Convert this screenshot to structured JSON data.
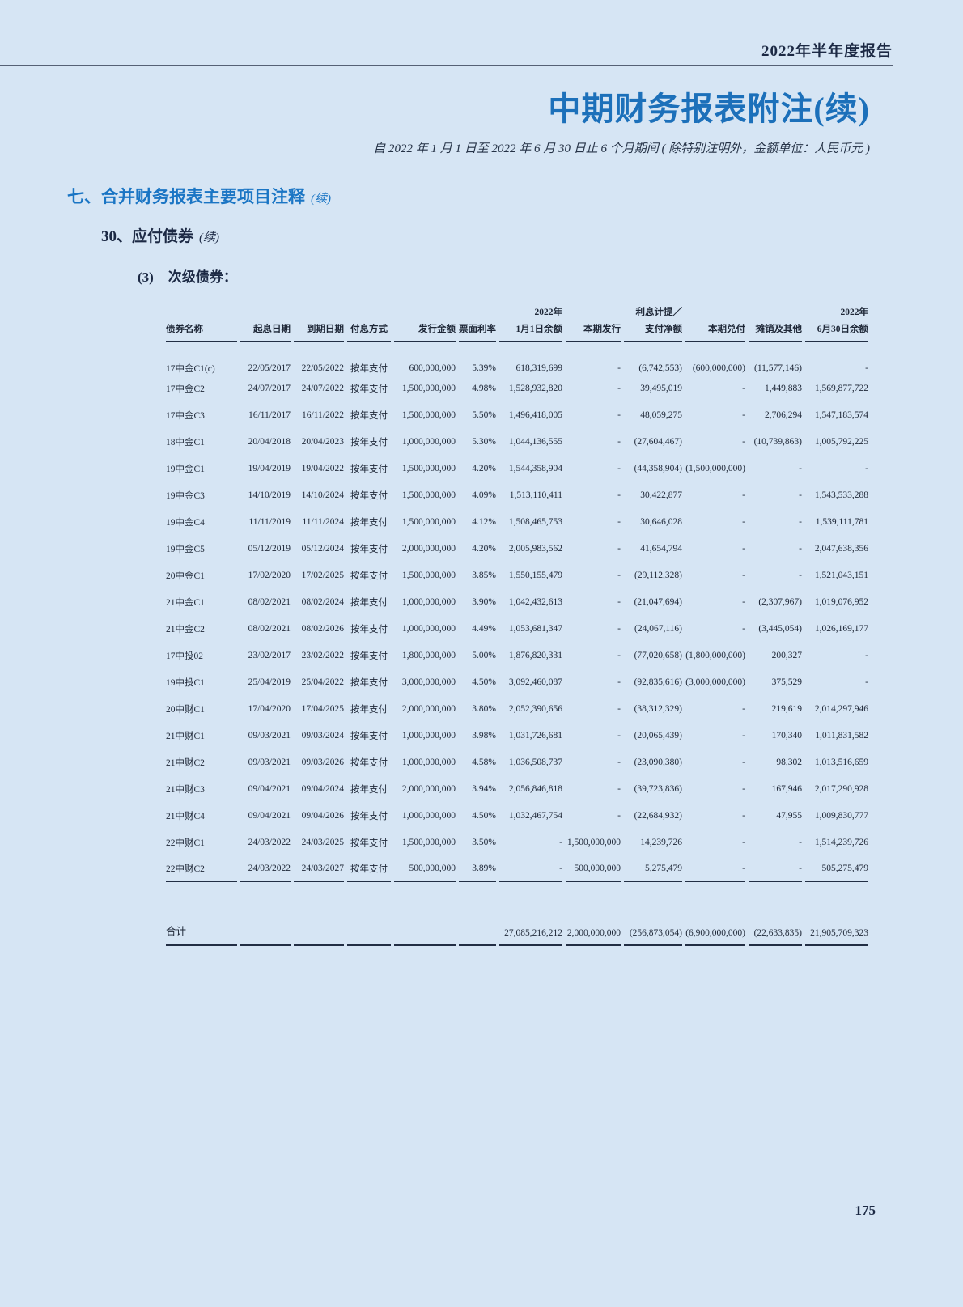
{
  "page": {
    "report_header": "2022年半年度报告",
    "title": "中期财务报表附注(续)",
    "subtitle": "自 2022 年 1 月 1 日至 2022 年 6 月 30 日止 6 个月期间 ( 除特别注明外，金额单位：人民币元 )",
    "page_number": "175"
  },
  "sections": {
    "level1": {
      "label": "七、合并财务报表主要项目注释",
      "suffix": "(续)"
    },
    "level2": {
      "label": "30、应付债券",
      "suffix": "(续)"
    },
    "level3": {
      "num": "(3)",
      "label": "次级债券："
    }
  },
  "table": {
    "superheaders": [
      "",
      "",
      "",
      "",
      "",
      "",
      "2022年",
      "",
      "利息计提／",
      "",
      "",
      "2022年"
    ],
    "headers": [
      "债券名称",
      "起息日期",
      "到期日期",
      "付息方式",
      "发行金额",
      "票面利率",
      "1月1日余额",
      "本期发行",
      "支付净额",
      "本期兑付",
      "摊销及其他",
      "6月30日余额"
    ],
    "rows": [
      [
        "17中金C1(c)",
        "22/05/2017",
        "22/05/2022",
        "按年支付",
        "600,000,000",
        "5.39%",
        "618,319,699",
        "-",
        "(6,742,553)",
        "(600,000,000)",
        "(11,577,146)",
        "-"
      ],
      [
        "17中金C2",
        "24/07/2017",
        "24/07/2022",
        "按年支付",
        "1,500,000,000",
        "4.98%",
        "1,528,932,820",
        "-",
        "39,495,019",
        "-",
        "1,449,883",
        "1,569,877,722"
      ],
      [
        "17中金C3",
        "16/11/2017",
        "16/11/2022",
        "按年支付",
        "1,500,000,000",
        "5.50%",
        "1,496,418,005",
        "-",
        "48,059,275",
        "-",
        "2,706,294",
        "1,547,183,574"
      ],
      [
        "18中金C1",
        "20/04/2018",
        "20/04/2023",
        "按年支付",
        "1,000,000,000",
        "5.30%",
        "1,044,136,555",
        "-",
        "(27,604,467)",
        "-",
        "(10,739,863)",
        "1,005,792,225"
      ],
      [
        "19中金C1",
        "19/04/2019",
        "19/04/2022",
        "按年支付",
        "1,500,000,000",
        "4.20%",
        "1,544,358,904",
        "-",
        "(44,358,904)",
        "(1,500,000,000)",
        "-",
        "-"
      ],
      [
        "19中金C3",
        "14/10/2019",
        "14/10/2024",
        "按年支付",
        "1,500,000,000",
        "4.09%",
        "1,513,110,411",
        "-",
        "30,422,877",
        "-",
        "-",
        "1,543,533,288"
      ],
      [
        "19中金C4",
        "11/11/2019",
        "11/11/2024",
        "按年支付",
        "1,500,000,000",
        "4.12%",
        "1,508,465,753",
        "-",
        "30,646,028",
        "-",
        "-",
        "1,539,111,781"
      ],
      [
        "19中金C5",
        "05/12/2019",
        "05/12/2024",
        "按年支付",
        "2,000,000,000",
        "4.20%",
        "2,005,983,562",
        "-",
        "41,654,794",
        "-",
        "-",
        "2,047,638,356"
      ],
      [
        "20中金C1",
        "17/02/2020",
        "17/02/2025",
        "按年支付",
        "1,500,000,000",
        "3.85%",
        "1,550,155,479",
        "-",
        "(29,112,328)",
        "-",
        "-",
        "1,521,043,151"
      ],
      [
        "21中金C1",
        "08/02/2021",
        "08/02/2024",
        "按年支付",
        "1,000,000,000",
        "3.90%",
        "1,042,432,613",
        "-",
        "(21,047,694)",
        "-",
        "(2,307,967)",
        "1,019,076,952"
      ],
      [
        "21中金C2",
        "08/02/2021",
        "08/02/2026",
        "按年支付",
        "1,000,000,000",
        "4.49%",
        "1,053,681,347",
        "-",
        "(24,067,116)",
        "-",
        "(3,445,054)",
        "1,026,169,177"
      ],
      [
        "17中投02",
        "23/02/2017",
        "23/02/2022",
        "按年支付",
        "1,800,000,000",
        "5.00%",
        "1,876,820,331",
        "-",
        "(77,020,658)",
        "(1,800,000,000)",
        "200,327",
        "-"
      ],
      [
        "19中投C1",
        "25/04/2019",
        "25/04/2022",
        "按年支付",
        "3,000,000,000",
        "4.50%",
        "3,092,460,087",
        "-",
        "(92,835,616)",
        "(3,000,000,000)",
        "375,529",
        "-"
      ],
      [
        "20中财C1",
        "17/04/2020",
        "17/04/2025",
        "按年支付",
        "2,000,000,000",
        "3.80%",
        "2,052,390,656",
        "-",
        "(38,312,329)",
        "-",
        "219,619",
        "2,014,297,946"
      ],
      [
        "21中财C1",
        "09/03/2021",
        "09/03/2024",
        "按年支付",
        "1,000,000,000",
        "3.98%",
        "1,031,726,681",
        "-",
        "(20,065,439)",
        "-",
        "170,340",
        "1,011,831,582"
      ],
      [
        "21中财C2",
        "09/03/2021",
        "09/03/2026",
        "按年支付",
        "1,000,000,000",
        "4.58%",
        "1,036,508,737",
        "-",
        "(23,090,380)",
        "-",
        "98,302",
        "1,013,516,659"
      ],
      [
        "21中财C3",
        "09/04/2021",
        "09/04/2024",
        "按年支付",
        "2,000,000,000",
        "3.94%",
        "2,056,846,818",
        "-",
        "(39,723,836)",
        "-",
        "167,946",
        "2,017,290,928"
      ],
      [
        "21中财C4",
        "09/04/2021",
        "09/04/2026",
        "按年支付",
        "1,000,000,000",
        "4.50%",
        "1,032,467,754",
        "-",
        "(22,684,932)",
        "-",
        "47,955",
        "1,009,830,777"
      ],
      [
        "22中财C1",
        "24/03/2022",
        "24/03/2025",
        "按年支付",
        "1,500,000,000",
        "3.50%",
        "-",
        "1,500,000,000",
        "14,239,726",
        "-",
        "-",
        "1,514,239,726"
      ],
      [
        "22中财C2",
        "24/03/2022",
        "24/03/2027",
        "按年支付",
        "500,000,000",
        "3.89%",
        "-",
        "500,000,000",
        "5,275,479",
        "-",
        "-",
        "505,275,479"
      ]
    ],
    "total": {
      "label": "合计",
      "values": [
        "27,085,216,212",
        "2,000,000,000",
        "(256,873,054)",
        "(6,900,000,000)",
        "(22,633,835)",
        "21,905,709,323"
      ]
    }
  },
  "colors": {
    "page_background": "#d6e5f4",
    "title_blue": "#1c70ba",
    "section_blue": "#1a75c4",
    "dark_navy_text": "#1c2944",
    "body_text": "#1e2737",
    "rule_line": "#222e44"
  }
}
